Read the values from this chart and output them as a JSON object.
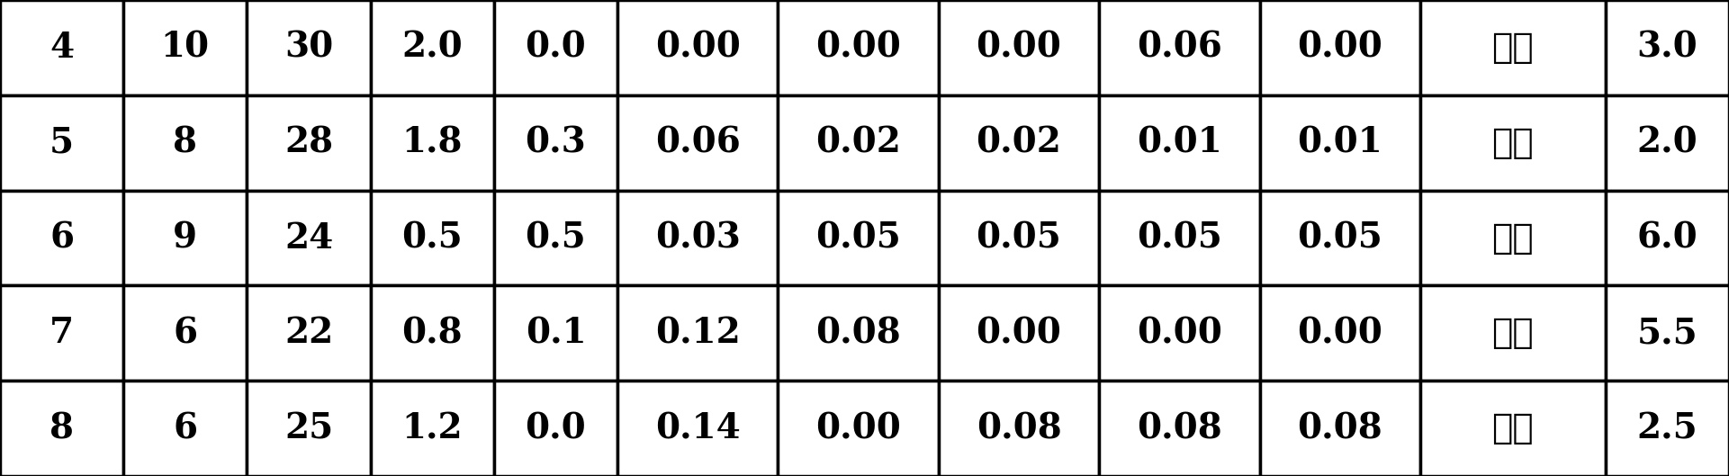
{
  "rows": [
    [
      "4",
      "10",
      "30",
      "2.0",
      "0.0",
      "0.00",
      "0.00",
      "0.00",
      "0.06",
      "0.00",
      "余量",
      "3.0"
    ],
    [
      "5",
      "8",
      "28",
      "1.8",
      "0.3",
      "0.06",
      "0.02",
      "0.02",
      "0.01",
      "0.01",
      "余量",
      "2.0"
    ],
    [
      "6",
      "9",
      "24",
      "0.5",
      "0.5",
      "0.03",
      "0.05",
      "0.05",
      "0.05",
      "0.05",
      "余量",
      "6.0"
    ],
    [
      "7",
      "6",
      "22",
      "0.8",
      "0.1",
      "0.12",
      "0.08",
      "0.00",
      "0.00",
      "0.00",
      "余量",
      "5.5"
    ],
    [
      "8",
      "6",
      "25",
      "1.2",
      "0.0",
      "0.14",
      "0.00",
      "0.08",
      "0.08",
      "0.08",
      "余量",
      "2.5"
    ]
  ],
  "n_cols": 12,
  "n_rows": 5,
  "bg_color": "#ffffff",
  "text_color": "#000000",
  "border_color": "#000000",
  "font_size": 28,
  "col_widths": [
    1.0,
    1.0,
    1.0,
    1.0,
    1.0,
    1.3,
    1.3,
    1.3,
    1.3,
    1.3,
    1.5,
    1.0
  ]
}
